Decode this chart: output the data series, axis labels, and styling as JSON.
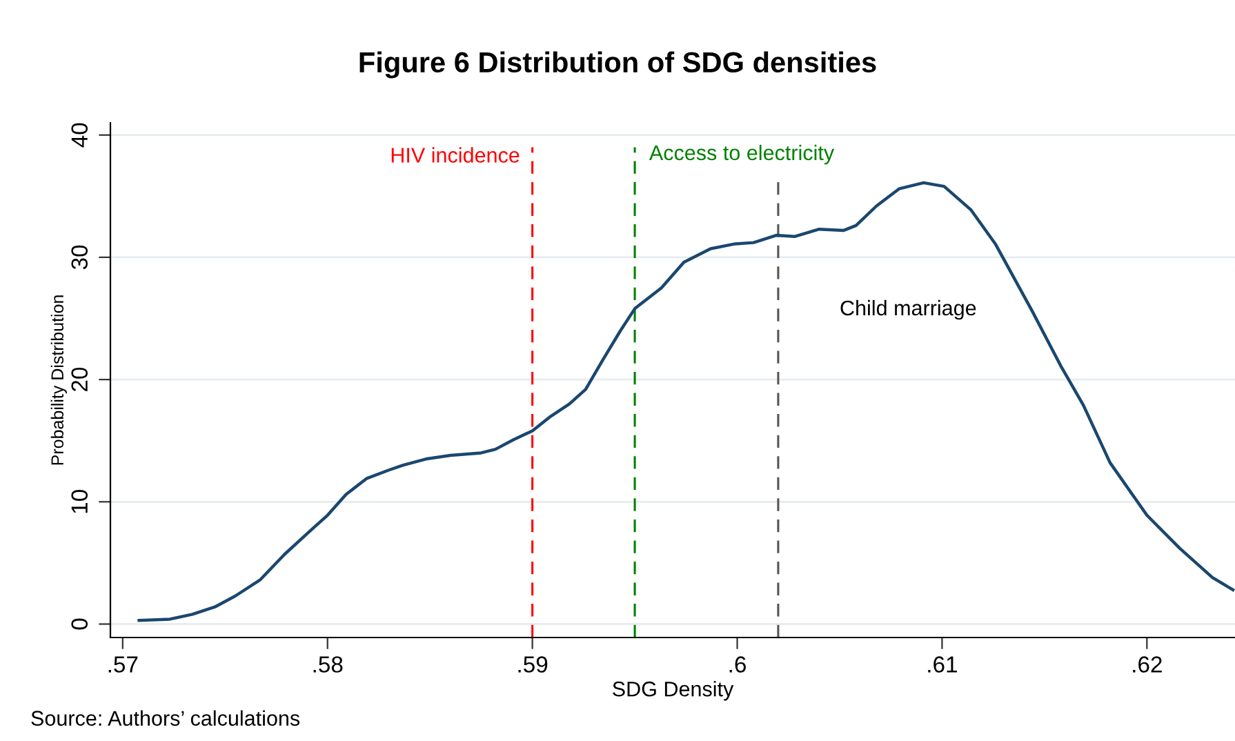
{
  "chart_data": {
    "type": "line",
    "title": "Figure 6 Distribution of SDG densities",
    "xlabel": "SDG Density",
    "ylabel": "Probability Distribution",
    "x": [
      0.5708,
      0.5723,
      0.5734,
      0.5745,
      0.5755,
      0.5767,
      0.5779,
      0.5792,
      0.58,
      0.5809,
      0.5819,
      0.583,
      0.5837,
      0.5848,
      0.586,
      0.5875,
      0.5882,
      0.5891,
      0.59,
      0.5909,
      0.5918,
      0.5926,
      0.5934,
      0.5943,
      0.595,
      0.5963,
      0.5974,
      0.5987,
      0.5999,
      0.6008,
      0.6019,
      0.6028,
      0.604,
      0.6052,
      0.6058,
      0.6068,
      0.6079,
      0.6091,
      0.6101,
      0.6114,
      0.6126,
      0.6144,
      0.6158,
      0.6169,
      0.6182,
      0.62,
      0.6216,
      0.6232,
      0.6242
    ],
    "series": [
      {
        "color": "#1a476f",
        "values": [
          0.3,
          0.4,
          0.8,
          1.4,
          2.3,
          3.6,
          5.7,
          7.7,
          8.9,
          10.6,
          11.9,
          12.6,
          13.0,
          13.5,
          13.8,
          14.0,
          14.3,
          15.1,
          15.8,
          17.0,
          18.0,
          19.2,
          21.5,
          24.0,
          25.8,
          27.5,
          29.6,
          30.7,
          31.1,
          31.2,
          31.8,
          31.7,
          32.3,
          32.2,
          32.6,
          34.2,
          35.6,
          36.1,
          35.8,
          33.9,
          31.1,
          25.6,
          21.1,
          17.9,
          13.2,
          8.9,
          6.2,
          3.8,
          2.8
        ]
      }
    ],
    "xlim": [
      0.5694,
      0.6243
    ],
    "ylim": [
      -1.1,
      41
    ],
    "xticks": [
      {
        "value": 0.57,
        "label": ".57"
      },
      {
        "value": 0.58,
        "label": ".58"
      },
      {
        "value": 0.59,
        "label": ".59"
      },
      {
        "value": 0.6,
        "label": ".6"
      },
      {
        "value": 0.61,
        "label": ".61"
      },
      {
        "value": 0.62,
        "label": ".62"
      }
    ],
    "yticks": [
      0,
      10,
      20,
      30,
      40
    ],
    "grid": "y",
    "marker": "none",
    "line_style": "solid",
    "ref_lines": [
      {
        "axis": "x",
        "value": 0.59,
        "label": "HIV incidence",
        "color": "#ff0000",
        "line_style": "dashed"
      },
      {
        "axis": "x",
        "value": 0.595,
        "label": "Access to electricity",
        "color": "#008000",
        "line_style": "dashed"
      },
      {
        "axis": "x",
        "value": 0.602,
        "label": "Child marriage",
        "color": "#555555",
        "line_style": "dashed"
      }
    ],
    "annotations": [
      "Source: Authors’ calculations"
    ]
  }
}
